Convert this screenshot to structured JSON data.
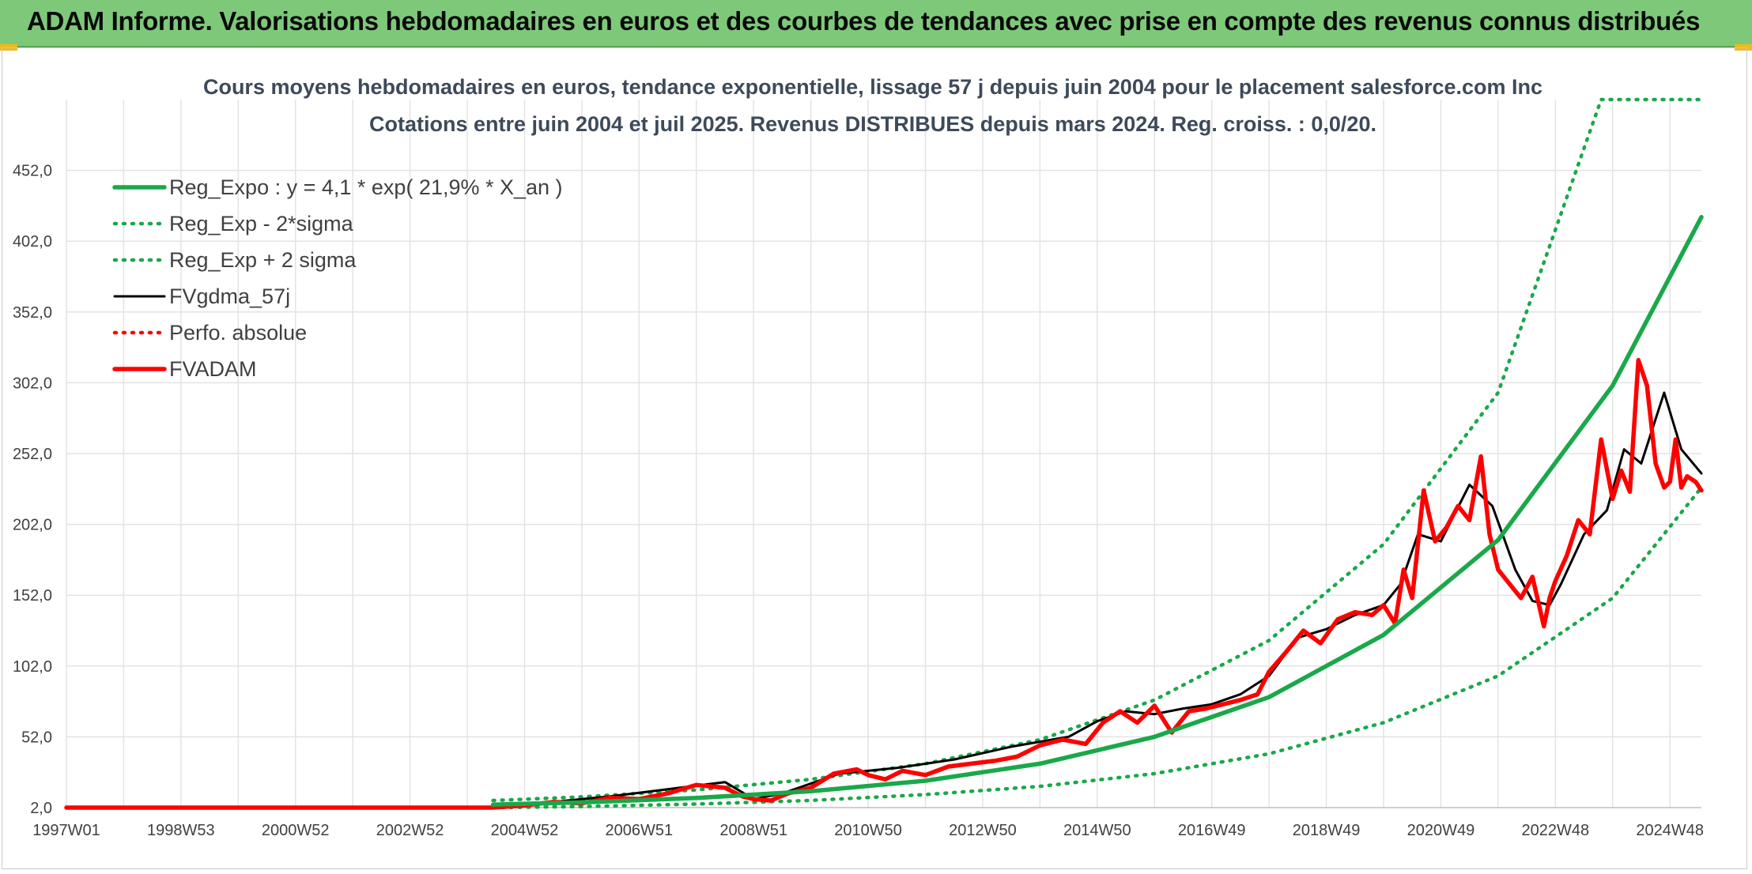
{
  "header": {
    "title": "ADAM Informe. Valorisations hebdomadaires en euros et des courbes de tendances avec prise en compte des revenus connus distribués"
  },
  "chart_data": {
    "type": "line",
    "title": "Cours moyens hebdomadaires en euros, tendance exponentielle, lissage 57 j depuis juin 2004 pour le placement salesforce.com Inc",
    "subtitle": "Cotations entre juin 2004 et juil 2025. Revenus DISTRIBUES depuis mars 2024. Reg. croiss. : 0,0/20.",
    "xlabel": "",
    "ylabel": "",
    "x_tick_labels": [
      "1997W01",
      "1998W53",
      "2000W52",
      "2002W52",
      "2004W52",
      "2006W51",
      "2008W51",
      "2010W50",
      "2012W50",
      "2014W50",
      "2016W49",
      "2018W49",
      "2020W49",
      "2022W48",
      "2024W48"
    ],
    "x_tick_years": [
      1997.0,
      1999.0,
      2001.0,
      2003.0,
      2005.0,
      2007.0,
      2009.0,
      2011.0,
      2013.0,
      2015.0,
      2017.0,
      2019.0,
      2021.0,
      2023.0,
      2025.0
    ],
    "y_tick_labels": [
      "2,0",
      "52,0",
      "102,0",
      "152,0",
      "202,0",
      "252,0",
      "302,0",
      "352,0",
      "402,0",
      "452,0"
    ],
    "y_ticks": [
      2,
      52,
      102,
      152,
      202,
      252,
      302,
      352,
      402,
      452
    ],
    "xlim": [
      1997.0,
      2025.55
    ],
    "ylim": [
      2,
      502
    ],
    "grid": true,
    "legend_position": "top-left",
    "colors": {
      "green": "#1aa84a",
      "black": "#000000",
      "red": "#ff0000"
    },
    "series": [
      {
        "name": "Reg_Expo : y = 4,1 * exp( 21,9% *  X_an )",
        "style": "solid-thick",
        "color": "#1aa84a",
        "x": [
          2004.45,
          2006,
          2008,
          2010,
          2012,
          2014,
          2016,
          2018,
          2020,
          2022,
          2024,
          2025.55
        ],
        "y": [
          4.1,
          5.7,
          8.8,
          13.6,
          21,
          33,
          52,
          80,
          124,
          191,
          300,
          419
        ]
      },
      {
        "name": "Reg_Exp - 2*sigma",
        "style": "dotted",
        "color": "#1aa84a",
        "x": [
          2004.45,
          2006,
          2008,
          2010,
          2012,
          2014,
          2016,
          2018,
          2020,
          2022,
          2024,
          2025.55
        ],
        "y": [
          2,
          2.8,
          4.5,
          7.1,
          11.2,
          17,
          26,
          40,
          62,
          95,
          150,
          228
        ]
      },
      {
        "name": "Reg_Exp + 2 sigma",
        "style": "dotted",
        "color": "#1aa84a",
        "x": [
          2004.45,
          2006,
          2008,
          2010,
          2012,
          2014,
          2016,
          2018,
          2020,
          2022,
          2023.8,
          2025.55
        ],
        "y": [
          7,
          9.6,
          14.5,
          22,
          33,
          50,
          78,
          120,
          188,
          295,
          502,
          502
        ]
      },
      {
        "name": "FVgdma_57j",
        "style": "solid",
        "color": "#000000",
        "x": [
          2004.5,
          2005.5,
          2006.5,
          2007.5,
          2008.5,
          2009.0,
          2009.5,
          2010.5,
          2011.5,
          2012.5,
          2013.5,
          2014.5,
          2015.0,
          2015.5,
          2016.0,
          2016.5,
          2017.0,
          2017.5,
          2018.0,
          2018.5,
          2019.0,
          2019.5,
          2020.0,
          2020.3,
          2020.6,
          2021.0,
          2021.5,
          2021.9,
          2022.3,
          2022.6,
          2022.9,
          2023.1,
          2023.5,
          2023.9,
          2024.2,
          2024.5,
          2024.9,
          2025.2,
          2025.55
        ],
        "y": [
          4,
          6,
          10,
          15,
          20,
          8,
          12,
          26,
          30,
          36,
          45,
          52,
          63,
          70,
          68,
          72,
          75,
          82,
          95,
          122,
          128,
          138,
          145,
          160,
          195,
          190,
          230,
          215,
          170,
          148,
          145,
          160,
          195,
          212,
          255,
          245,
          295,
          255,
          238
        ]
      },
      {
        "name": "Perfo. absolue",
        "style": "dotted",
        "color": "#ff0000",
        "x": [
          1997.0,
          2004.45
        ],
        "y": [
          2,
          2
        ]
      },
      {
        "name": "FVADAM",
        "style": "solid-thick",
        "color": "#ff0000",
        "x": [
          1997.0,
          2004.45,
          2005.0,
          2005.5,
          2006.0,
          2006.5,
          2007.0,
          2007.5,
          2008.0,
          2008.5,
          2008.8,
          2009.0,
          2009.3,
          2009.6,
          2010.0,
          2010.4,
          2010.8,
          2011.0,
          2011.3,
          2011.6,
          2012.0,
          2012.4,
          2012.8,
          2013.2,
          2013.6,
          2014.0,
          2014.4,
          2014.8,
          2015.1,
          2015.4,
          2015.7,
          2016.0,
          2016.3,
          2016.6,
          2016.9,
          2017.2,
          2017.5,
          2017.8,
          2018.0,
          2018.3,
          2018.6,
          2018.9,
          2019.2,
          2019.5,
          2019.8,
          2020.0,
          2020.2,
          2020.35,
          2020.5,
          2020.7,
          2020.9,
          2021.1,
          2021.3,
          2021.5,
          2021.7,
          2021.85,
          2022.0,
          2022.2,
          2022.4,
          2022.6,
          2022.8,
          2022.9,
          2023.0,
          2023.2,
          2023.4,
          2023.6,
          2023.8,
          2024.0,
          2024.15,
          2024.3,
          2024.45,
          2024.6,
          2024.75,
          2024.9,
          2025.0,
          2025.1,
          2025.2,
          2025.3,
          2025.45,
          2025.55
        ],
        "y": [
          2,
          2,
          3.5,
          6,
          5,
          9,
          8,
          12,
          18,
          16,
          10,
          8,
          7,
          12,
          16,
          26,
          29,
          25,
          22,
          28,
          25,
          31,
          33,
          35,
          38,
          46,
          50,
          47,
          62,
          70,
          62,
          74,
          55,
          70,
          72,
          75,
          78,
          82,
          98,
          112,
          127,
          118,
          135,
          140,
          138,
          145,
          132,
          170,
          150,
          226,
          190,
          200,
          215,
          205,
          250,
          195,
          170,
          160,
          150,
          165,
          130,
          150,
          162,
          180,
          205,
          195,
          262,
          220,
          240,
          225,
          318,
          300,
          245,
          228,
          232,
          262,
          228,
          236,
          232,
          226
        ]
      }
    ]
  }
}
